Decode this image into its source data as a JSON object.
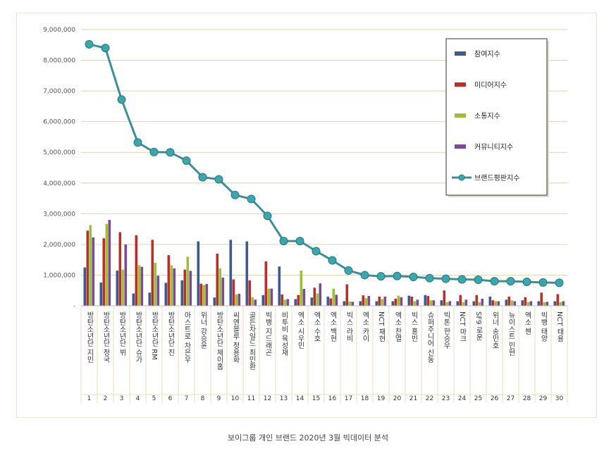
{
  "caption": "보이그룹 개인 브랜드 2020년 3월 빅데이터 분석",
  "chart_data": {
    "type": "bar",
    "ylim": [
      0,
      9000000
    ],
    "yticks": [
      "9,000,000",
      "8,000,000",
      "7,000,000",
      "6,000,000",
      "5,000,000",
      "4,000,000",
      "3,000,000",
      "2,000,000",
      "1,000,000",
      "-"
    ],
    "categories": [
      "방탄소년단 지민",
      "방탄소년단 정국",
      "방탄소년단 뷔",
      "방탄소년단 슈가",
      "방탄소년단 RM",
      "방탄소년단 진",
      "아스트로 차은우",
      "위너 강승윤",
      "방탄소년단 제이홉",
      "씨엔블루 정용화",
      "골든차일드 최민환",
      "빅뱅 지드래곤",
      "비투비 육성재",
      "엑소 시우민",
      "엑소 수호",
      "엑소 백현",
      "빅스 라비",
      "엑소 카이",
      "NCT 재현",
      "엑소 찬열",
      "빅스 홍빈",
      "슈퍼주니어 신동",
      "빅톤 한승우",
      "NCT 마크",
      "SF9 로운",
      "위너 송민호",
      "뉴이스트 민현",
      "엑소 첸",
      "빅뱅 태양",
      "NCT 태용"
    ],
    "ranks": [
      "1",
      "2",
      "3",
      "4",
      "5",
      "6",
      "7",
      "8",
      "9",
      "10",
      "11",
      "12",
      "13",
      "14",
      "15",
      "16",
      "17",
      "18",
      "19",
      "20",
      "21",
      "22",
      "23",
      "24",
      "25",
      "26",
      "27",
      "28",
      "29",
      "30"
    ],
    "grid": true,
    "legend_position": "top-right",
    "series": [
      {
        "name": "참여지수",
        "kind": "bar",
        "color": "#3e5a8f",
        "values": [
          1250000,
          760000,
          1150000,
          400000,
          430000,
          750000,
          830000,
          2100000,
          270000,
          2150000,
          2100000,
          350000,
          1280000,
          220000,
          270000,
          300000,
          150000,
          150000,
          150000,
          150000,
          330000,
          350000,
          180000,
          150000,
          150000,
          300000,
          200000,
          180000,
          150000,
          150000
        ]
      },
      {
        "name": "미디어지수",
        "kind": "bar",
        "color": "#b83028",
        "values": [
          2450000,
          2200000,
          2400000,
          2300000,
          2150000,
          1650000,
          1180000,
          720000,
          1700000,
          860000,
          830000,
          1450000,
          370000,
          350000,
          590000,
          240000,
          700000,
          340000,
          300000,
          230000,
          300000,
          320000,
          500000,
          350000,
          350000,
          180000,
          300000,
          280000,
          430000,
          380000
        ]
      },
      {
        "name": "소통지수",
        "kind": "bar",
        "color": "#9fbf3c",
        "values": [
          2630000,
          2670000,
          1180000,
          1320000,
          1400000,
          1320000,
          1600000,
          680000,
          1220000,
          370000,
          280000,
          560000,
          200000,
          1150000,
          400000,
          560000,
          140000,
          250000,
          220000,
          330000,
          150000,
          180000,
          120000,
          120000,
          120000,
          150000,
          180000,
          120000,
          120000,
          120000
        ]
      },
      {
        "name": "커뮤니티지수",
        "kind": "bar",
        "color": "#7a4a95",
        "values": [
          2230000,
          2800000,
          2000000,
          1270000,
          980000,
          1220000,
          1140000,
          710000,
          920000,
          390000,
          200000,
          560000,
          220000,
          550000,
          730000,
          360000,
          130000,
          320000,
          300000,
          280000,
          200000,
          180000,
          150000,
          200000,
          230000,
          150000,
          150000,
          150000,
          130000,
          150000
        ]
      },
      {
        "name": "브랜드평판지수",
        "kind": "line",
        "color": "#3d8f94",
        "markerColor": "#3aa6ad",
        "values": [
          8520000,
          8400000,
          6720000,
          5320000,
          5010000,
          5000000,
          4730000,
          4190000,
          4120000,
          3610000,
          3480000,
          2930000,
          2110000,
          2110000,
          1780000,
          1480000,
          1150000,
          1000000,
          960000,
          970000,
          940000,
          900000,
          880000,
          860000,
          850000,
          800000,
          800000,
          780000,
          760000,
          750000
        ]
      }
    ]
  }
}
